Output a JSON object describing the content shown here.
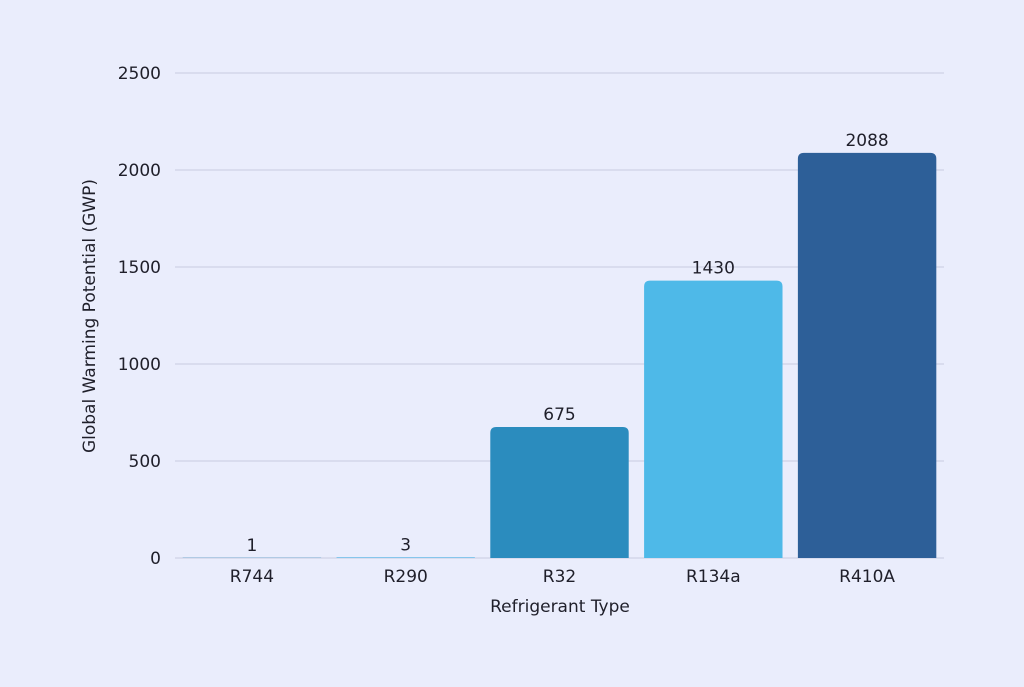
{
  "chart_data": {
    "type": "bar",
    "title": "",
    "xlabel": "Refrigerant Type",
    "ylabel": "Global Warming Potential (GWP)",
    "categories": [
      "R744",
      "R290",
      "R32",
      "R134a",
      "R410A"
    ],
    "values": [
      1,
      3,
      675,
      1430,
      2088
    ],
    "value_labels": [
      "1",
      "3",
      "675",
      "1430",
      "2088"
    ],
    "colors": [
      "#2b8cbe",
      "#4eb3e5",
      "#2b8cbe",
      "#4eb9e8",
      "#2d5f98"
    ],
    "ylim": [
      0,
      2500
    ],
    "yticks": [
      0,
      500,
      1000,
      1500,
      2000,
      2500
    ],
    "ytick_labels": [
      "0",
      "500",
      "1000",
      "1500",
      "2000",
      "2500"
    ],
    "grid": true,
    "legend": "none"
  }
}
